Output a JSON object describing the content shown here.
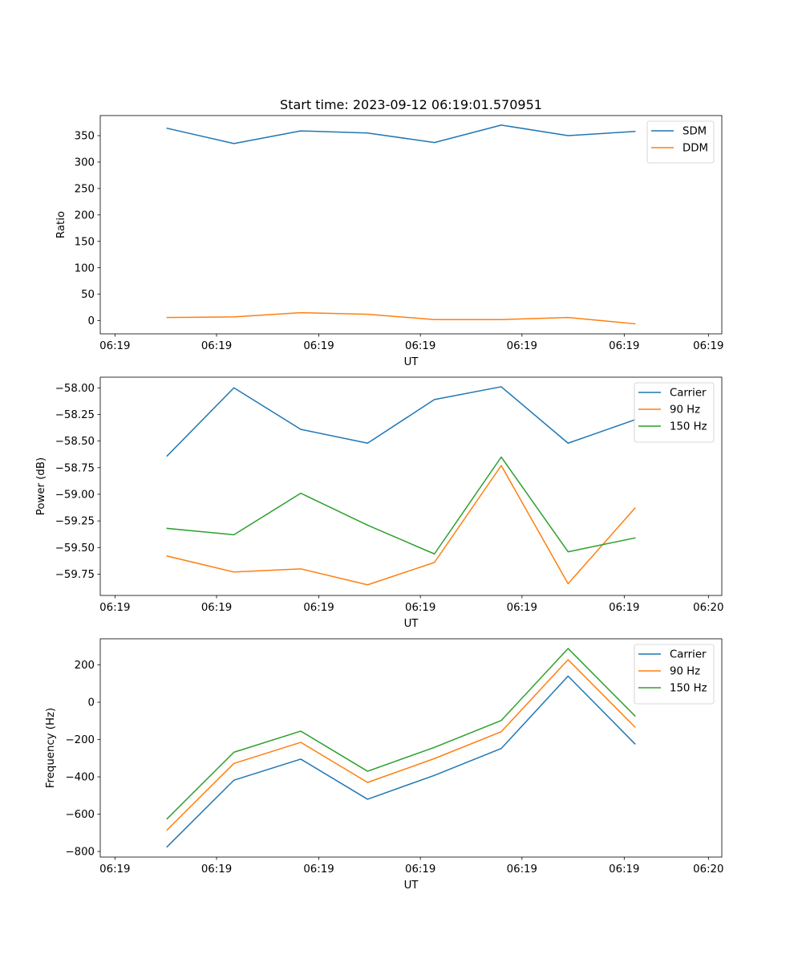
{
  "figure_title": "Start time: 2023-09-12 06:19:01.570951",
  "colors": {
    "c0": "#1f77b4",
    "c1": "#ff7f0e",
    "c2": "#2ca02c"
  },
  "chart_data": [
    {
      "type": "line",
      "title": "Start time: 2023-09-12 06:19:01.570951",
      "xlabel": "UT",
      "ylabel": "Ratio",
      "x": [
        1,
        2,
        3,
        4,
        5,
        6,
        7,
        8
      ],
      "xlim": [
        0,
        9.3
      ],
      "xticks": [
        0.22,
        1.74,
        3.27,
        4.79,
        6.31,
        7.84,
        9.1
      ],
      "xtick_labels": [
        "06:19",
        "06:19",
        "06:19",
        "06:19",
        "06:19",
        "06:19",
        "06:19"
      ],
      "ylim": [
        -25,
        388
      ],
      "yticks": [
        0,
        50,
        100,
        150,
        200,
        250,
        300,
        350
      ],
      "ytick_labels": [
        "0",
        "50",
        "100",
        "150",
        "200",
        "250",
        "300",
        "350"
      ],
      "legend_position": "upper right",
      "series": [
        {
          "name": "SDM",
          "color": "#1f77b4",
          "values": [
            364,
            335,
            359,
            355,
            337,
            370,
            350,
            358
          ]
        },
        {
          "name": "DDM",
          "color": "#ff7f0e",
          "values": [
            6,
            7,
            15,
            12,
            2,
            2,
            6,
            -6
          ]
        }
      ]
    },
    {
      "type": "line",
      "title": "",
      "xlabel": "UT",
      "ylabel": "Power (dB)",
      "x": [
        1,
        2,
        3,
        4,
        5,
        6,
        7,
        8
      ],
      "xlim": [
        0,
        9.3
      ],
      "xticks": [
        0.22,
        1.74,
        3.27,
        4.79,
        6.31,
        7.84,
        9.1
      ],
      "xtick_labels": [
        "06:19",
        "06:19",
        "06:19",
        "06:19",
        "06:19",
        "06:19",
        "06:20"
      ],
      "ylim": [
        -59.95,
        -57.9
      ],
      "yticks": [
        -58.0,
        -58.25,
        -58.5,
        -58.75,
        -59.0,
        -59.25,
        -59.5,
        -59.75
      ],
      "ytick_labels": [
        "−58.00",
        "−58.25",
        "−58.50",
        "−58.75",
        "−59.00",
        "−59.25",
        "−59.50",
        "−59.75"
      ],
      "legend_position": "upper right",
      "series": [
        {
          "name": "Carrier",
          "color": "#1f77b4",
          "values": [
            -58.64,
            -58.0,
            -58.39,
            -58.52,
            -58.11,
            -57.99,
            -58.52,
            -58.3
          ]
        },
        {
          "name": "90 Hz",
          "color": "#ff7f0e",
          "values": [
            -59.58,
            -59.73,
            -59.7,
            -59.85,
            -59.64,
            -58.73,
            -59.84,
            -59.13
          ]
        },
        {
          "name": "150 Hz",
          "color": "#2ca02c",
          "values": [
            -59.32,
            -59.38,
            -58.99,
            -59.29,
            -59.56,
            -58.65,
            -59.54,
            -59.41
          ]
        }
      ]
    },
    {
      "type": "line",
      "title": "",
      "xlabel": "UT",
      "ylabel": "Frequency (Hz)",
      "x": [
        1,
        2,
        3,
        4,
        5,
        6,
        7,
        8
      ],
      "xlim": [
        0,
        9.3
      ],
      "xticks": [
        0.22,
        1.74,
        3.27,
        4.79,
        6.31,
        7.84,
        9.1
      ],
      "xtick_labels": [
        "06:19",
        "06:19",
        "06:19",
        "06:19",
        "06:19",
        "06:19",
        "06:20"
      ],
      "ylim": [
        -830,
        340
      ],
      "yticks": [
        200,
        0,
        -200,
        -400,
        -600,
        -800
      ],
      "ytick_labels": [
        "200",
        "0",
        "−200",
        "−400",
        "−600",
        "−800"
      ],
      "legend_position": "upper right",
      "series": [
        {
          "name": "Carrier",
          "color": "#1f77b4",
          "values": [
            -775,
            -418,
            -305,
            -520,
            -392,
            -248,
            140,
            -223
          ]
        },
        {
          "name": "90 Hz",
          "color": "#ff7f0e",
          "values": [
            -685,
            -328,
            -215,
            -430,
            -302,
            -158,
            228,
            -133
          ]
        },
        {
          "name": "150 Hz",
          "color": "#2ca02c",
          "values": [
            -625,
            -268,
            -155,
            -370,
            -242,
            -98,
            288,
            -73
          ]
        }
      ]
    }
  ]
}
